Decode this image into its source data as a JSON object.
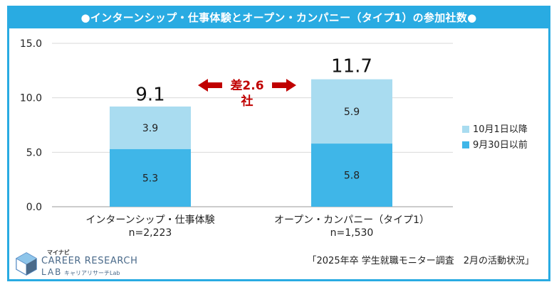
{
  "chart_data": {
    "type": "bar",
    "stacked": true,
    "title": "●インターンシップ・仕事体験とオープン・カンパニー（タイプ1）の参加社数●",
    "categories": [
      "インターンシップ・仕事体験",
      "オープン・カンパニー（タイプ1）"
    ],
    "category_sublabels": [
      "n=2,223",
      "n=1,530"
    ],
    "series": [
      {
        "name": "9月30日以前",
        "values": [
          5.3,
          5.8
        ],
        "labels": [
          "5.3",
          "5.8"
        ],
        "color": "#3fb6e8"
      },
      {
        "name": "10月1日以降",
        "values": [
          3.9,
          5.9
        ],
        "labels": [
          "3.9",
          "5.9"
        ],
        "color": "#a9dcf0"
      }
    ],
    "totals": [
      9.1,
      11.7
    ],
    "total_labels": [
      "9.1",
      "11.7"
    ],
    "ylim": [
      0,
      15
    ],
    "yticks": [
      0,
      5,
      10,
      15
    ],
    "ytick_labels": [
      "0.0",
      "5.0",
      "10.0",
      "15.0"
    ],
    "grid": true,
    "legend_position": "right",
    "legend_order": [
      "10月1日以降",
      "9月30日以前"
    ],
    "annotation": {
      "line1": "差2.6",
      "line2": "社",
      "color": "#c00000"
    },
    "source": "「2025年卒 学生就職モニター調査　2月の活動状況」"
  },
  "colors": {
    "frame": "#29abe2",
    "title_bg": "#29abe2",
    "title_text": "#ffffff"
  },
  "logo": {
    "top": "マイナビ",
    "main": "CAREER RESEARCH",
    "lab": "LAB",
    "sub": "キャリアリサーチLab"
  }
}
